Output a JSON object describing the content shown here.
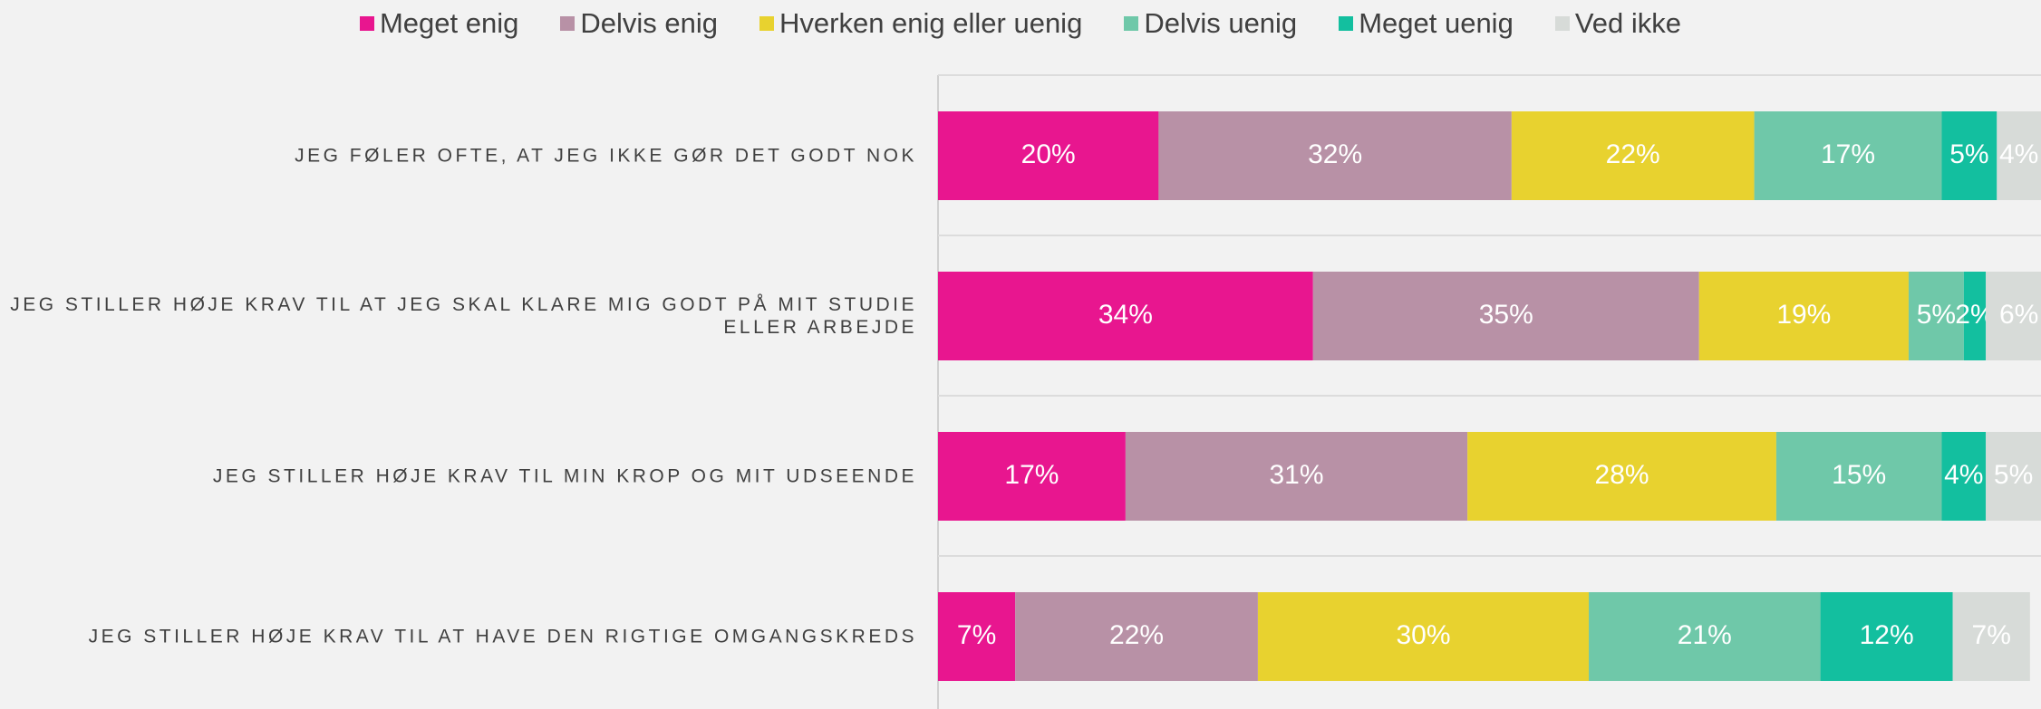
{
  "chart_data": {
    "type": "stacked_barh",
    "categories": [
      "JEG FØLER OFTE, AT JEG IKKE GØR DET GODT NOK",
      "JEG STILLER HØJE KRAV TIL AT JEG SKAL KLARE MIG GODT PÅ MIT STUDIE ELLER ARBEJDE",
      "JEG STILLER HØJE KRAV TIL MIN KROP OG MIT UDSEENDE",
      "JEG STILLER HØJE KRAV TIL AT HAVE DEN RIGTIGE OMGANGSKREDS"
    ],
    "series": [
      {
        "name": "Meget enig",
        "color": "#e8168f",
        "values": [
          20,
          34,
          17,
          7
        ],
        "value_labels": [
          "20%",
          "34%",
          "17%",
          "7%"
        ]
      },
      {
        "name": "Delvis enig",
        "color": "#b891a6",
        "values": [
          32,
          35,
          31,
          22
        ],
        "value_labels": [
          "32%",
          "35%",
          "31%",
          "22%"
        ]
      },
      {
        "name": "Hverken enig eller uenig",
        "color": "#e8d22f",
        "values": [
          22,
          19,
          28,
          30
        ],
        "value_labels": [
          "22%",
          "19%",
          "28%",
          "30%"
        ]
      },
      {
        "name": "Delvis uenig",
        "color": "#6fc8a9",
        "values": [
          17,
          5,
          15,
          21
        ],
        "value_labels": [
          "17%",
          "5%",
          "15%",
          "21%"
        ]
      },
      {
        "name": "Meget uenig",
        "color": "#13bf9f",
        "values": [
          5,
          2,
          4,
          12
        ],
        "value_labels": [
          "5%",
          "2%",
          "4%",
          "12%"
        ]
      },
      {
        "name": "Ved ikke",
        "color": "#d7dbd8",
        "values": [
          4,
          6,
          5,
          7
        ],
        "value_labels": [
          "4%",
          "6%",
          "5%",
          "7%"
        ]
      }
    ],
    "xlim": [
      0,
      100
    ],
    "legend": "top"
  }
}
